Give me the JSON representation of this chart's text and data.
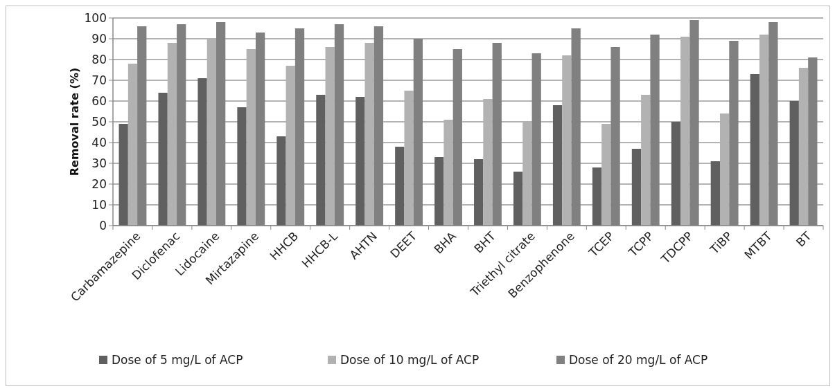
{
  "chart_data": {
    "type": "bar",
    "ylabel": "Removal rate (%)",
    "categories": [
      "Carbamazepine",
      "Diclofenac",
      "Lidocaine",
      "Mirtazapine",
      "HHCB",
      "HHCB-L",
      "AHTN",
      "DEET",
      "BHA",
      "BHT",
      "Triethyl citrate",
      "Benzophenone",
      "TCEP",
      "TCPP",
      "TDCPP",
      "TiBP",
      "MTBT",
      "BT"
    ],
    "series": [
      {
        "name": "Dose of 5 mg/L of ACP",
        "color": "#606060",
        "values": [
          49,
          64,
          71,
          57,
          43,
          63,
          62,
          38,
          33,
          32,
          26,
          58,
          28,
          37,
          50,
          31,
          73,
          60
        ]
      },
      {
        "name": "Dose of 10 mg/L of ACP",
        "color": "#b2b2b2",
        "values": [
          78,
          88,
          90,
          85,
          77,
          86,
          88,
          65,
          51,
          61,
          50,
          82,
          49,
          63,
          91,
          54,
          92,
          76
        ]
      },
      {
        "name": "Dose of 20 mg/L of ACP",
        "color": "#808080",
        "values": [
          96,
          97,
          98,
          93,
          95,
          97,
          96,
          90,
          85,
          88,
          83,
          95,
          86,
          92,
          99,
          89,
          98,
          81
        ]
      }
    ],
    "ylim": [
      0,
      100
    ],
    "yticks": [
      0,
      10,
      20,
      30,
      40,
      50,
      60,
      70,
      80,
      90,
      100
    ],
    "grid": "y",
    "legend": "bottom"
  }
}
